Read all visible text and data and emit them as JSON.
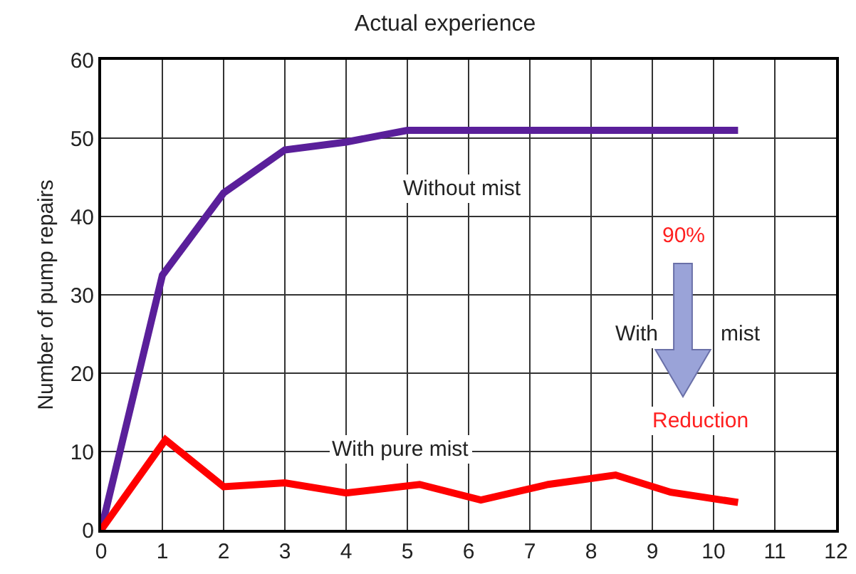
{
  "chart_data": {
    "type": "line",
    "title": "Actual experience",
    "ylabel": "Number of pump repairs",
    "series": [
      {
        "name": "Without mist",
        "color": "#5a1f9a",
        "x": [
          0,
          1,
          2,
          3,
          4,
          5,
          10.4
        ],
        "values": [
          0,
          32.5,
          43,
          48.5,
          49.5,
          51,
          51
        ]
      },
      {
        "name": "With pure mist",
        "color": "#ff0000",
        "x": [
          0,
          1.05,
          2,
          3,
          4,
          5.2,
          6.2,
          7.3,
          8.4,
          9.3,
          10.4
        ],
        "values": [
          0,
          11.5,
          5.5,
          6,
          4.7,
          5.8,
          3.8,
          5.8,
          7,
          4.8,
          3.5
        ]
      }
    ],
    "annotations": [
      "90%",
      "With",
      "mist",
      "Reduction"
    ],
    "xlim": [
      0,
      12
    ],
    "xticks": [
      0,
      1,
      2,
      3,
      4,
      5,
      6,
      7,
      8,
      9,
      10,
      11,
      12
    ],
    "ylim": [
      0,
      60
    ],
    "yticks": [
      0,
      10,
      20,
      30,
      40,
      50,
      60
    ],
    "grid": true,
    "marker": "none",
    "line_style": "solid"
  }
}
